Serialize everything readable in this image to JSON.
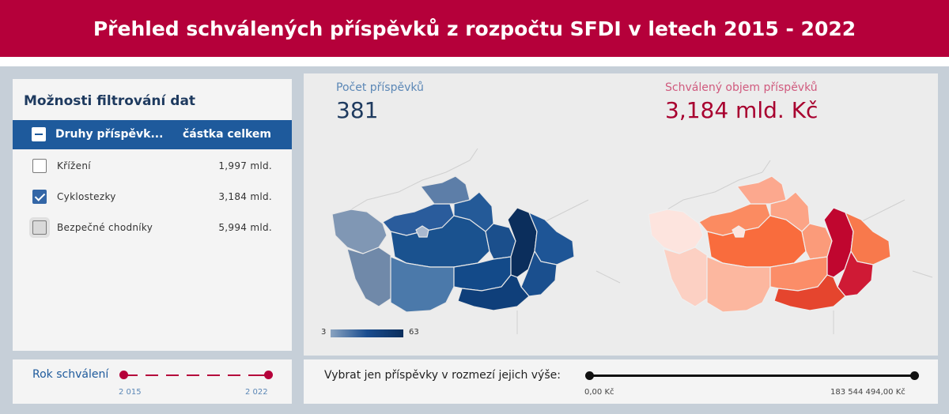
{
  "header": {
    "title": "Přehled schválených příspěvků z rozpočtu SFDI v letech 2015 - 2022"
  },
  "filter": {
    "title": "Možnosti filtrování dat",
    "col_type": "Druhy příspěvk...",
    "col_amount": "částka celkem",
    "items": [
      {
        "label": "Křížení",
        "amount": "1,997 mld.",
        "checked": false
      },
      {
        "label": "Cyklostezky",
        "amount": "3,184 mld.",
        "checked": true
      },
      {
        "label": "Bezpečné chodníky",
        "amount": "5,994 mld.",
        "checked": false
      }
    ]
  },
  "year": {
    "label": "Rok schválení",
    "min": "2 015",
    "max": "2 022"
  },
  "kpi": {
    "count_label": "Počet příspěvků",
    "count_value": "381",
    "volume_label": "Schválený objem příspěvků",
    "volume_value": "3,184 mld. Kč"
  },
  "legend": {
    "min": "3",
    "max": "63"
  },
  "amount": {
    "label": "Vybrat jen příspěvky v rozmezí jejich výše:",
    "min": "0,00 Kč",
    "max": "183 544 494,00 Kč"
  },
  "colors": {
    "brand": "#b5003a",
    "blue_dark": "#0b2e5c",
    "blue_header": "#1e5a9c",
    "kpi_blue": "#1e3a5f",
    "kpi_red": "#a8002f"
  }
}
